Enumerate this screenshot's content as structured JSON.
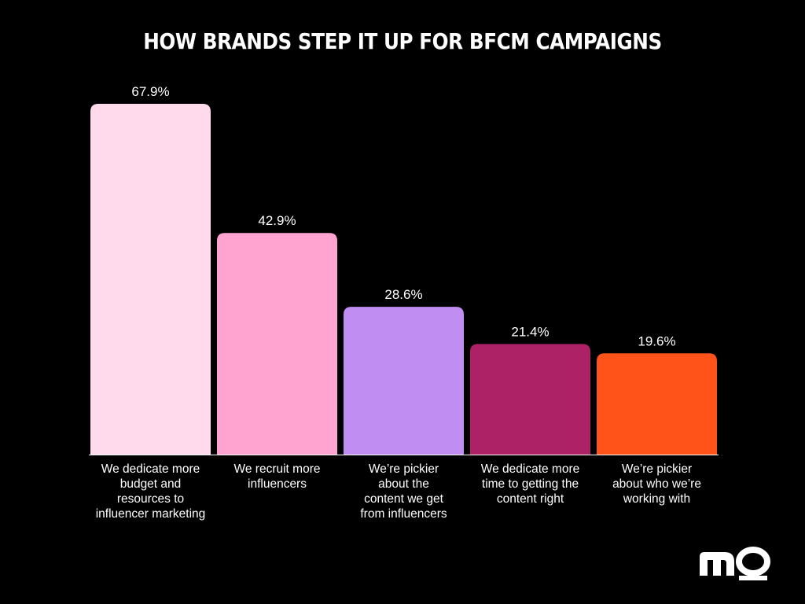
{
  "chart_data": {
    "type": "bar",
    "title": "HOW BRANDS STEP IT UP FOR BFCM CAMPAIGNS",
    "categories": [
      [
        "We dedicate more",
        "budget and",
        "resources to",
        "influencer marketing"
      ],
      [
        "We recruit more",
        "influencers"
      ],
      [
        "We’re pickier",
        "about the",
        "content we get",
        "from influencers"
      ],
      [
        "We dedicate more",
        "time to getting the",
        "content right"
      ],
      [
        "We’re pickier",
        "about who we’re",
        "working with"
      ]
    ],
    "values": [
      67.9,
      42.9,
      28.6,
      21.4,
      19.6
    ],
    "value_labels": [
      "67.9%",
      "42.9%",
      "28.6%",
      "21.4%",
      "19.6%"
    ],
    "colors": [
      "#ffd9ec",
      "#ffa3d1",
      "#c08ef2",
      "#ad2166",
      "#ff5319"
    ],
    "ylim": [
      0,
      67.9
    ],
    "grid": false,
    "legend": "none"
  },
  "brand": {
    "logo_text": "mo"
  }
}
